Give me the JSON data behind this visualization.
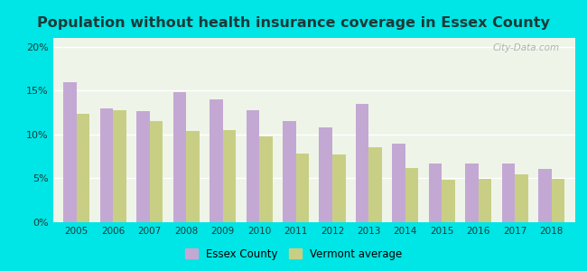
{
  "title": "Population without health insurance coverage in Essex County",
  "years": [
    2005,
    2006,
    2007,
    2008,
    2009,
    2010,
    2011,
    2012,
    2013,
    2014,
    2015,
    2016,
    2017,
    2018
  ],
  "essex_county": [
    16.0,
    13.0,
    12.7,
    14.8,
    14.0,
    12.8,
    11.5,
    10.8,
    13.5,
    9.0,
    6.7,
    6.7,
    6.7,
    6.1
  ],
  "vermont_avg": [
    12.4,
    12.8,
    11.5,
    10.4,
    10.5,
    9.8,
    7.8,
    7.7,
    8.5,
    6.2,
    4.8,
    4.9,
    5.5,
    4.9
  ],
  "essex_color": "#c4a8d4",
  "vermont_color": "#c8cf84",
  "background_outer": "#00e5e5",
  "background_inner": "#eef5e8",
  "yticks": [
    0,
    5,
    10,
    15,
    20
  ],
  "ylim": [
    0,
    21
  ],
  "ylabel_labels": [
    "0%",
    "5%",
    "10%",
    "15%",
    "20%"
  ],
  "legend_essex": "Essex County",
  "legend_vermont": "Vermont average",
  "bar_width": 0.36,
  "title_fontsize": 11.5,
  "title_color": "#1a3a3a",
  "watermark": "City-Data.com"
}
